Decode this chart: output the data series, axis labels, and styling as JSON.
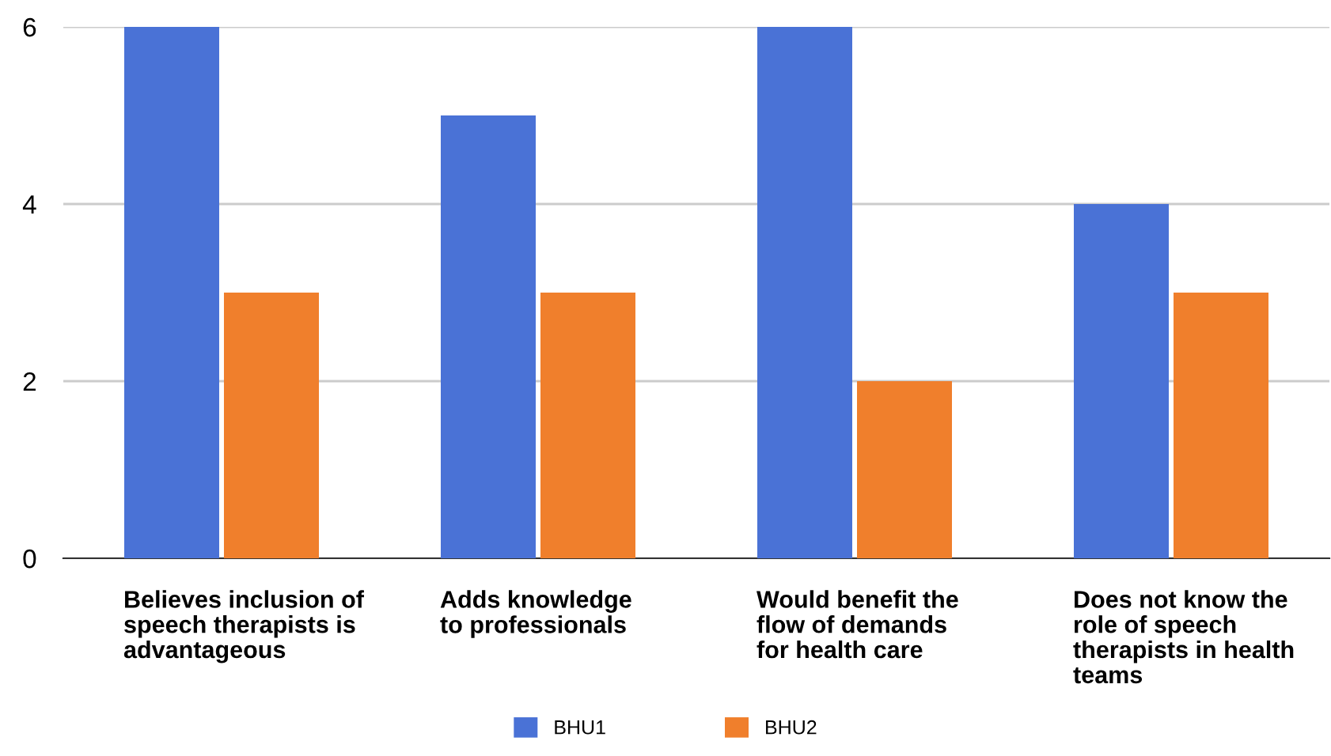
{
  "chart_data": {
    "type": "bar",
    "categories": [
      "Believes inclusion of\nspeech therapists is\nadvantageous",
      "Adds knowledge\nto professionals",
      "Would benefit the\nflow of demands\nfor health care",
      "Does not know the\nrole of speech\ntherapists in health\nteams"
    ],
    "series": [
      {
        "name": "BHU1",
        "color": "#4a72d6",
        "values": [
          6,
          5,
          6,
          4
        ]
      },
      {
        "name": "BHU2",
        "color": "#f07f2c",
        "values": [
          3,
          3,
          2,
          3
        ]
      }
    ],
    "ylim": [
      0,
      6
    ],
    "yticks": [
      0,
      2,
      4,
      6
    ],
    "grid": "y",
    "legend": "bottom"
  }
}
